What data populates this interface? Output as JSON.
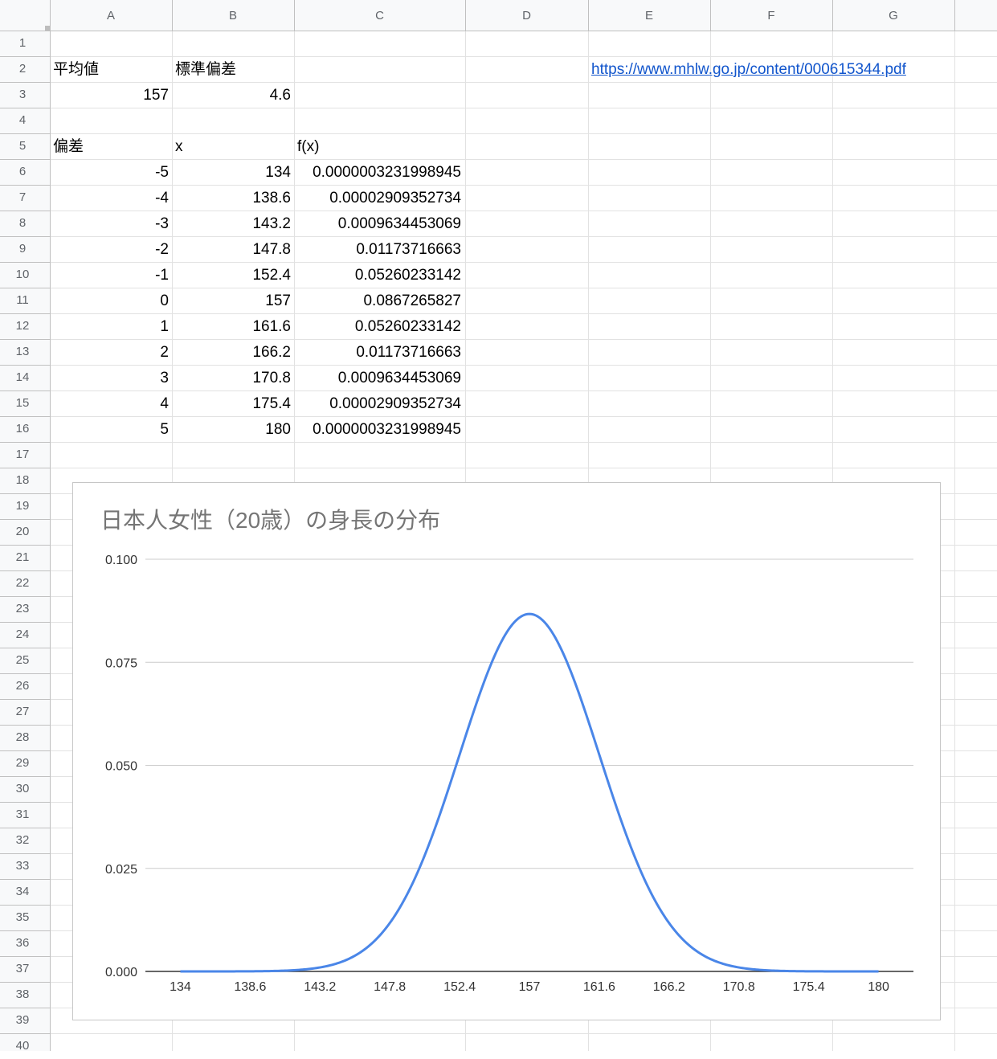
{
  "columns": [
    "A",
    "B",
    "C",
    "D",
    "E",
    "F",
    "G"
  ],
  "rows": [
    "1",
    "2",
    "3",
    "4",
    "5",
    "6",
    "7",
    "8",
    "9",
    "10",
    "11",
    "12",
    "13",
    "14",
    "15",
    "16",
    "17",
    "18",
    "19",
    "20",
    "21",
    "22",
    "23",
    "24",
    "25",
    "26",
    "27",
    "28",
    "29",
    "30",
    "31",
    "32",
    "33",
    "34",
    "35",
    "36",
    "37",
    "38",
    "39",
    "40"
  ],
  "cells": {
    "a2": "平均値",
    "b2": "標準偏差",
    "a3": "157",
    "b3": "4.6",
    "e2": "https://www.mhlw.go.jp/content/000615344.pdf",
    "a5": "偏差",
    "b5": "x",
    "c5": "f(x)"
  },
  "table": [
    [
      "-5",
      "134",
      "0.0000003231998945"
    ],
    [
      "-4",
      "138.6",
      "0.00002909352734"
    ],
    [
      "-3",
      "143.2",
      "0.0009634453069"
    ],
    [
      "-2",
      "147.8",
      "0.01173716663"
    ],
    [
      "-1",
      "152.4",
      "0.05260233142"
    ],
    [
      "0",
      "157",
      "0.0867265827"
    ],
    [
      "1",
      "161.6",
      "0.05260233142"
    ],
    [
      "2",
      "166.2",
      "0.01173716663"
    ],
    [
      "3",
      "170.8",
      "0.0009634453069"
    ],
    [
      "4",
      "175.4",
      "0.00002909352734"
    ],
    [
      "5",
      "180",
      "0.0000003231998945"
    ]
  ],
  "chart_data": {
    "type": "line",
    "title": "日本人女性（20歳）の身長の分布",
    "categories": [
      "134",
      "138.6",
      "143.2",
      "147.8",
      "152.4",
      "157",
      "161.6",
      "166.2",
      "170.8",
      "175.4",
      "180"
    ],
    "series": [
      {
        "values": [
          3.231998945e-07,
          2.909352734e-05,
          0.0009634453069,
          0.01173716663,
          0.05260233142,
          0.0867265827,
          0.05260233142,
          0.01173716663,
          0.0009634453069,
          2.909352734e-05,
          3.231998945e-07
        ]
      }
    ],
    "ylim": [
      0,
      0.1
    ],
    "yticks": [
      "0.000",
      "0.025",
      "0.050",
      "0.075",
      "0.100"
    ],
    "grid": true,
    "line_color": "#4a86e8"
  }
}
